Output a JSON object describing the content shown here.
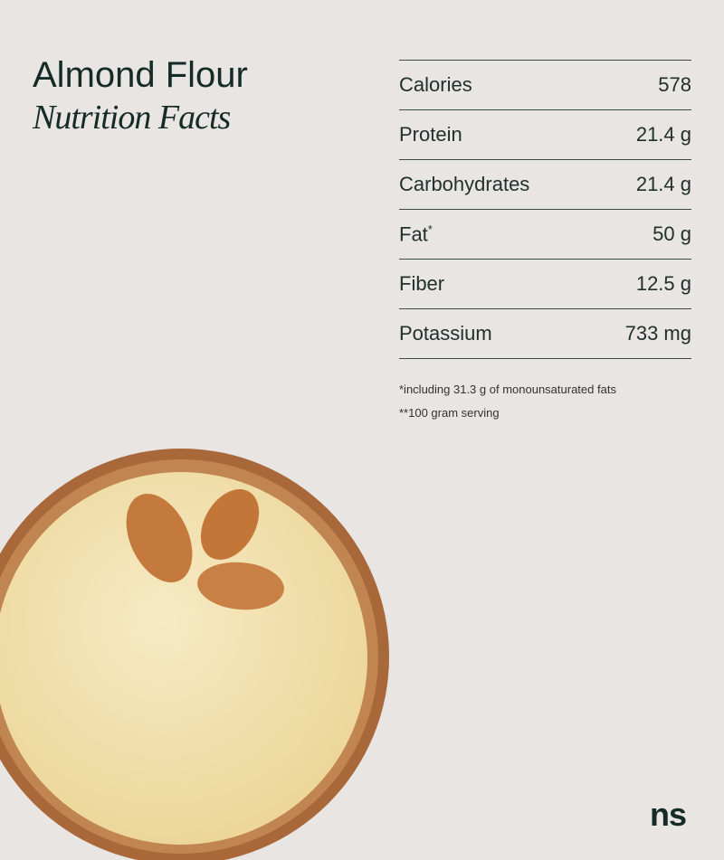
{
  "header": {
    "title": "Almond Flour",
    "subtitle": "Nutrition Facts"
  },
  "nutrients": [
    {
      "label": "Calories",
      "sup": "",
      "value": "578"
    },
    {
      "label": "Protein",
      "sup": "",
      "value": "21.4 g"
    },
    {
      "label": "Carbohydrates",
      "sup": "",
      "value": "21.4 g"
    },
    {
      "label": "Fat",
      "sup": "*",
      "value": "50 g"
    },
    {
      "label": "Fiber",
      "sup": "",
      "value": "12.5 g"
    },
    {
      "label": "Potassium",
      "sup": "",
      "value": "733 mg"
    }
  ],
  "notes": [
    "*including 31.3 g of monounsaturated fats",
    "**100 gram serving"
  ],
  "logo": "ns",
  "colors": {
    "background": "#e8e5e2",
    "text": "#142b27",
    "bowl": "#a8683a",
    "flour": "#f3e3b0",
    "almond": "#c47a3c"
  }
}
